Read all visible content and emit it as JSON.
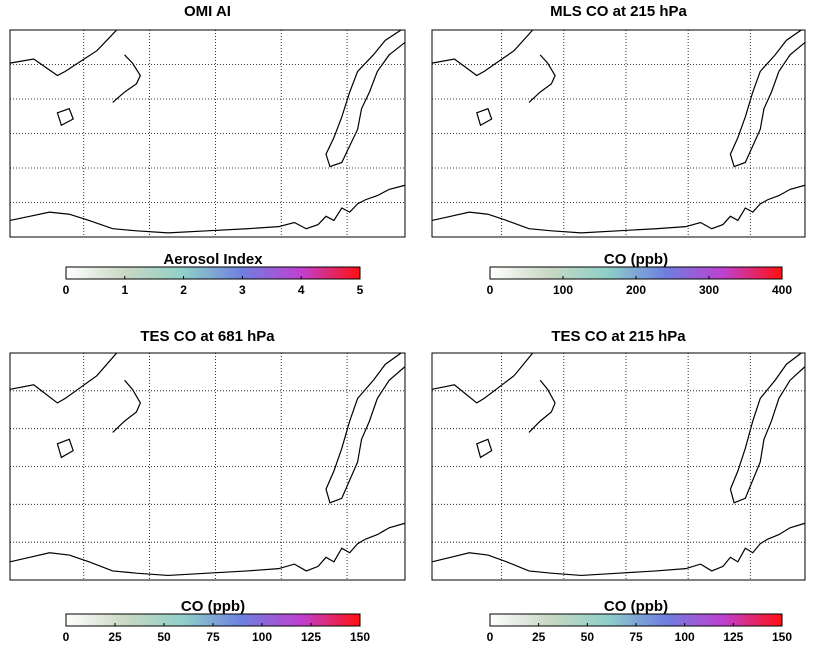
{
  "chart_data": [
    {
      "type": "map",
      "title": "OMI AI",
      "colorbar": {
        "label": "Aerosol Index",
        "lim": [
          0,
          5
        ],
        "ticks": [
          0,
          1,
          2,
          3,
          4,
          5
        ],
        "colors": [
          "#ffffff",
          "#c9d8c4",
          "#8fd0c8",
          "#6f7fe0",
          "#c040d0",
          "#ff1010"
        ]
      }
    },
    {
      "type": "map",
      "title": "MLS CO at 215 hPa",
      "colorbar": {
        "label": "CO (ppb)",
        "lim": [
          0,
          400
        ],
        "ticks": [
          0,
          100,
          200,
          300,
          400
        ],
        "colors": [
          "#ffffff",
          "#c9d8c4",
          "#8fd0c8",
          "#6f7fe0",
          "#c040d0",
          "#ff1010"
        ]
      }
    },
    {
      "type": "map",
      "title": "TES CO at 681 hPa",
      "colorbar": {
        "label": "CO (ppb)",
        "lim": [
          0,
          150
        ],
        "ticks": [
          0,
          25,
          50,
          75,
          100,
          125,
          150
        ],
        "colors": [
          "#ffffff",
          "#c9d8c4",
          "#8fd0c8",
          "#6f7fe0",
          "#c040d0",
          "#ff1010"
        ]
      }
    },
    {
      "type": "map",
      "title": "TES CO at 215 hPa",
      "colorbar": {
        "label": "CO (ppb)",
        "lim": [
          0,
          150
        ],
        "ticks": [
          0,
          25,
          50,
          75,
          100,
          125,
          150
        ],
        "colors": [
          "#ffffff",
          "#c9d8c4",
          "#8fd0c8",
          "#6f7fe0",
          "#c040d0",
          "#ff1010"
        ]
      }
    }
  ]
}
